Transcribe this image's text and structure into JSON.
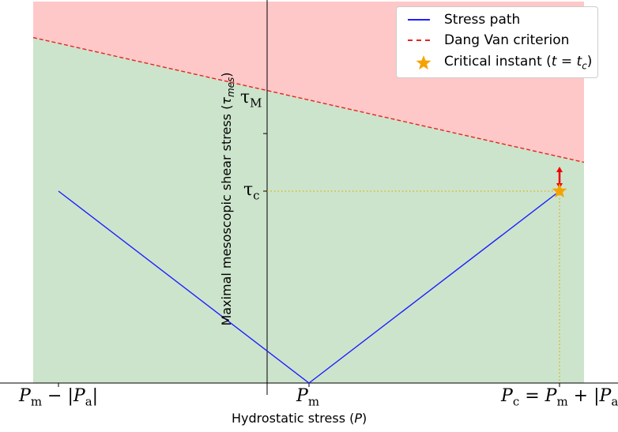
{
  "chart_data": {
    "type": "line",
    "xlabel": "Hydrostatic stress (P)",
    "ylabel": "Maximal mesoscopic shear stress (τ_mes)",
    "xlim": [
      -1.1,
      1.3
    ],
    "ylim": [
      0,
      1.82
    ],
    "x_ticks": [
      {
        "value": -1,
        "label": "P_m − |P_a|"
      },
      {
        "value": 0,
        "label": "P_m"
      },
      {
        "value": 1,
        "label": "P_c = P_m + |P_a|"
      }
    ],
    "y_ticks": [
      {
        "value": 1.3,
        "label": "τ_M"
      },
      {
        "value": 1.0,
        "label": "τ_c"
      }
    ],
    "regions": [
      {
        "name": "safe",
        "color": "#cce4cc"
      },
      {
        "name": "failure",
        "color": "#ffc8c8"
      }
    ],
    "series": [
      {
        "name": "Stress path",
        "color": "#1f1fff",
        "style": "solid",
        "x": [
          -1,
          0,
          1
        ],
        "y": [
          1.0,
          0.0,
          1.0
        ]
      },
      {
        "name": "Dang Van criterion",
        "color": "#e8231e",
        "style": "dashed",
        "x": [
          -1.1,
          1.2
        ],
        "y": [
          1.8,
          1.12
        ]
      }
    ],
    "critical_instant": {
      "label": "Critical instant (t = t_c)",
      "x": 1,
      "y": 1.0,
      "color": "#f5a300"
    },
    "margin_arrow": {
      "x": 1,
      "y_from": 1.0,
      "y_to": 1.14,
      "color": "#ee0000"
    },
    "guide_lines": {
      "color": "#e0b000"
    }
  },
  "legend": {
    "items": [
      {
        "label": "Stress path"
      },
      {
        "label": "Dang Van criterion"
      },
      {
        "label": "Critical instant (t = t_c)"
      }
    ]
  }
}
